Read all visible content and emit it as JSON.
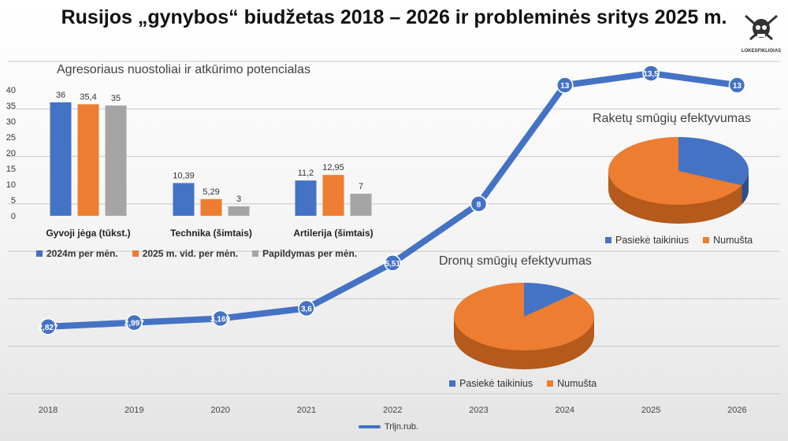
{
  "title": "Rusijos „gynybos“ biudžetas 2018 – 2026 ir probleminės sritys 2025 m.",
  "logo": {
    "icon": "skull-crossed-guns-icon",
    "text": "LOKESFIKLIOIAS"
  },
  "colors": {
    "blue": "#4472c4",
    "orange": "#ed7d31",
    "gray": "#a5a5a5"
  },
  "chart_data": [
    {
      "type": "line",
      "x": [
        "2018",
        "2019",
        "2020",
        "2021",
        "2022",
        "2023",
        "2024",
        "2025",
        "2026"
      ],
      "series": [
        {
          "name": "Trljn.rub.",
          "values": [
            2.827,
            2.997,
            3.169,
            3.6,
            5.51,
            8,
            13,
            13.5,
            13
          ],
          "labels": [
            "2,827",
            "2,997",
            "3,169",
            "3,6",
            "5,51",
            "8",
            "13",
            "13,5",
            "13"
          ]
        }
      ],
      "ylim": [
        0,
        14
      ],
      "grid": true,
      "legend": "bottom",
      "color": "#4472c4"
    },
    {
      "type": "bar",
      "title": "Agresoriaus nuostoliai ir atkūrimo potencialas",
      "categories": [
        "Gyvoji jėga (tūkst.)",
        "Technika (šimtais)",
        "Artilerija (šimtais)"
      ],
      "series": [
        {
          "name": "2024m per mėn.",
          "values": [
            36,
            10.39,
            11.2
          ],
          "labels": [
            "36",
            "10,39",
            "11,2"
          ],
          "color": "#4472c4"
        },
        {
          "name": "2025 m. vid. per mėn.",
          "values": [
            35.4,
            5.29,
            12.95
          ],
          "labels": [
            "35,4",
            "5,29",
            "12,95"
          ],
          "color": "#ed7d31"
        },
        {
          "name": "Papildymas per mėn.",
          "values": [
            35,
            3,
            7
          ],
          "labels": [
            "35",
            "3",
            "7"
          ],
          "color": "#a5a5a5"
        }
      ],
      "yticks": [
        "0",
        "5",
        "10",
        "15",
        "20",
        "25",
        "30",
        "35",
        "40"
      ],
      "ylim": [
        0,
        40
      ],
      "legend": "bottom"
    },
    {
      "type": "pie",
      "title": "Raketų smūgių efektyvumas",
      "labels": [
        "Pasiekė taikinius",
        "Numušta"
      ],
      "values": [
        0.32,
        0.68
      ],
      "colors": [
        "#4472c4",
        "#ed7d31"
      ],
      "legend": "bottom"
    },
    {
      "type": "pie",
      "title": "Dronų smūgių efektyvumas",
      "labels": [
        "Pasiekė taikinius",
        "Numušta"
      ],
      "values": [
        0.13,
        0.87
      ],
      "colors": [
        "#4472c4",
        "#ed7d31"
      ],
      "legend": "bottom"
    }
  ]
}
